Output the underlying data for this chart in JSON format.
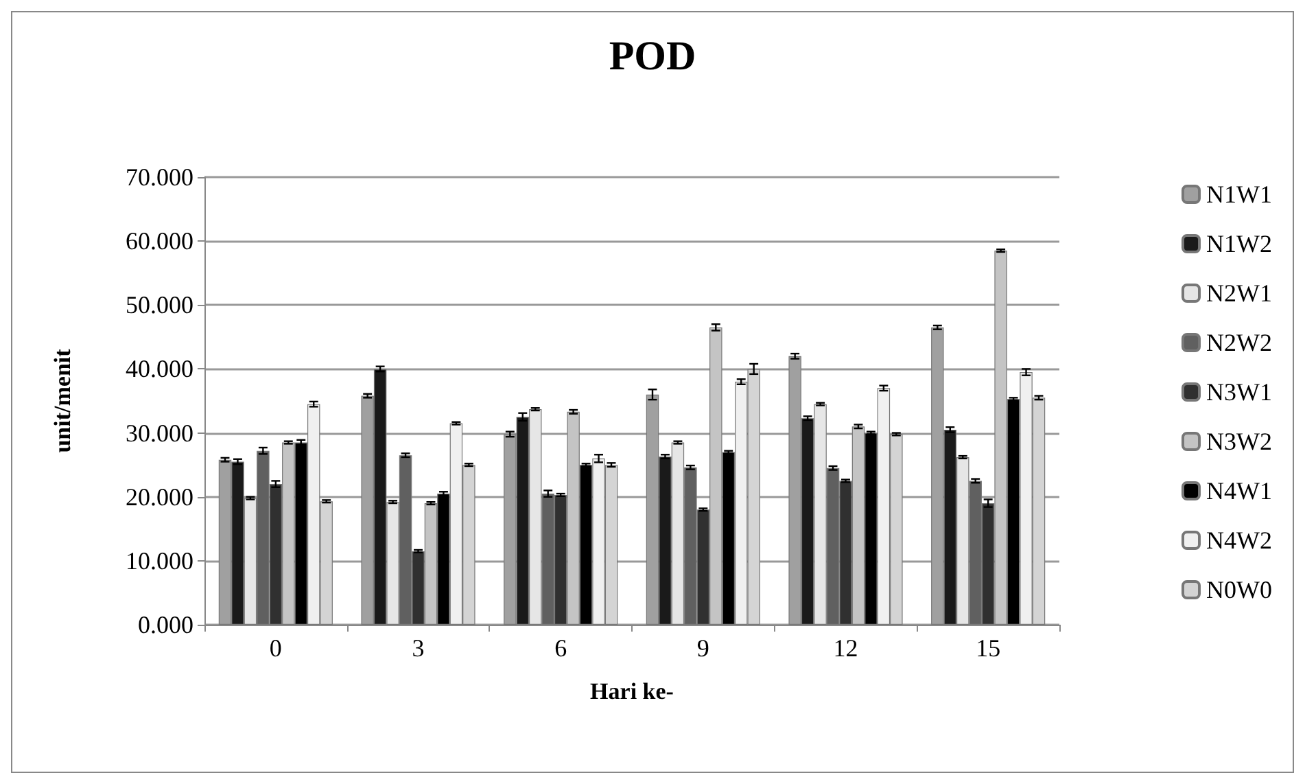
{
  "chart_data": {
    "type": "bar",
    "title": "POD",
    "xlabel": "Hari ke-",
    "ylabel": "unit/menit",
    "categories": [
      "0",
      "3",
      "6",
      "9",
      "12",
      "15"
    ],
    "ylim": [
      0,
      70
    ],
    "yticks": [
      {
        "value": 0,
        "label": "0.000"
      },
      {
        "value": 10,
        "label": "10.000"
      },
      {
        "value": 20,
        "label": "20.000"
      },
      {
        "value": 30,
        "label": "30.000"
      },
      {
        "value": 40,
        "label": "40.000"
      },
      {
        "value": 50,
        "label": "50.000"
      },
      {
        "value": 60,
        "label": "60.000"
      },
      {
        "value": 70,
        "label": "70.000"
      }
    ],
    "grid": "y",
    "legend": "right",
    "series": [
      {
        "name": "N1W1",
        "color": "#a0a0a0",
        "values": [
          25.8,
          35.8,
          29.8,
          36,
          42,
          46.5
        ],
        "errors": [
          0.3,
          0.3,
          0.4,
          0.8,
          0.4,
          0.3
        ]
      },
      {
        "name": "N1W2",
        "color": "#1a1a1a",
        "values": [
          25.5,
          40,
          32.5,
          26.3,
          32.3,
          30.5
        ],
        "errors": [
          0.4,
          0.4,
          0.6,
          0.3,
          0.3,
          0.4
        ]
      },
      {
        "name": "N2W1",
        "color": "#e6e6e6",
        "values": [
          19.8,
          19.2,
          33.7,
          28.5,
          34.5,
          26.2
        ],
        "errors": [
          0.2,
          0.2,
          0.2,
          0.2,
          0.2,
          0.2
        ]
      },
      {
        "name": "N2W2",
        "color": "#606060",
        "values": [
          27.2,
          26.5,
          20.5,
          24.6,
          24.5,
          22.5
        ],
        "errors": [
          0.5,
          0.3,
          0.5,
          0.3,
          0.3,
          0.3
        ]
      },
      {
        "name": "N3W1",
        "color": "#303030",
        "values": [
          22,
          11.5,
          20.3,
          18,
          22.5,
          19
        ],
        "errors": [
          0.5,
          0.2,
          0.2,
          0.2,
          0.2,
          0.6
        ]
      },
      {
        "name": "N3W2",
        "color": "#c4c4c4",
        "values": [
          28.5,
          19,
          33.3,
          46.5,
          31,
          58.5
        ],
        "errors": [
          0.2,
          0.2,
          0.3,
          0.5,
          0.3,
          0.2
        ]
      },
      {
        "name": "N4W1",
        "color": "#000000",
        "values": [
          28.5,
          20.5,
          25,
          27,
          30,
          35.3
        ],
        "errors": [
          0.4,
          0.3,
          0.2,
          0.2,
          0.2,
          0.2
        ]
      },
      {
        "name": "N4W2",
        "color": "#f0f0f0",
        "values": [
          34.5,
          31.5,
          26,
          38,
          37,
          39.5
        ],
        "errors": [
          0.4,
          0.2,
          0.6,
          0.4,
          0.4,
          0.5
        ]
      },
      {
        "name": "N0W0",
        "color": "#d4d4d4",
        "values": [
          19.3,
          25,
          25,
          40,
          29.8,
          35.5
        ],
        "errors": [
          0.2,
          0.2,
          0.3,
          0.8,
          0.2,
          0.3
        ]
      }
    ]
  }
}
